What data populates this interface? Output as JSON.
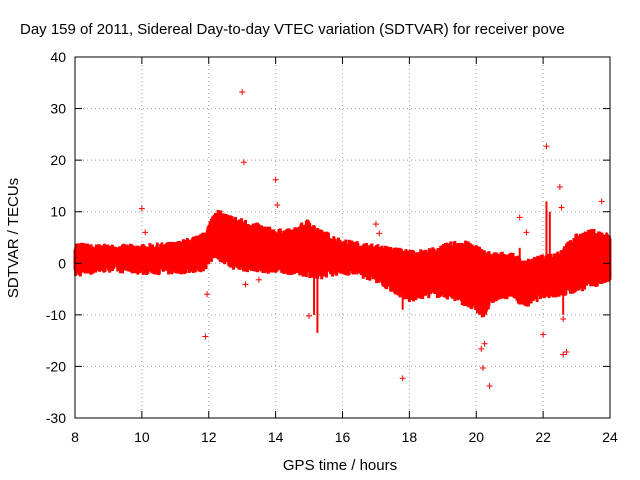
{
  "chart_data": {
    "type": "scatter",
    "title": "Day 159 of 2011, Sidereal Day-to-day VTEC variation (SDTVAR) for receiver pove",
    "xlabel": "GPS time / hours",
    "ylabel": "SDTVAR / TECUs",
    "xlim": [
      8,
      24
    ],
    "ylim": [
      -30,
      40
    ],
    "xticks": [
      "8",
      "10",
      "12",
      "14",
      "16",
      "18",
      "20",
      "22",
      "24"
    ],
    "yticks": [
      "40",
      "30",
      "20",
      "10",
      "0",
      "-10",
      "-20",
      "-30"
    ],
    "grid": true,
    "marker": "+",
    "color": "#ff0000",
    "band": {
      "x": [
        8.0,
        8.5,
        9.0,
        10.0,
        11.0,
        11.8,
        12.0,
        12.2,
        12.5,
        13.0,
        13.5,
        14.0,
        14.5,
        15.0,
        15.3,
        15.5,
        16.0,
        16.5,
        17.0,
        17.5,
        18.0,
        18.5,
        19.0,
        19.5,
        20.0,
        20.2,
        20.5,
        21.0,
        21.5,
        22.0,
        22.5,
        23.0,
        23.5,
        24.0
      ],
      "upper": [
        3.5,
        3.0,
        3.0,
        3.0,
        3.5,
        5.0,
        7.0,
        10.0,
        9.0,
        8.0,
        7.0,
        6.0,
        6.0,
        8.0,
        6.0,
        5.5,
        4.0,
        3.5,
        3.0,
        2.5,
        2.0,
        2.0,
        3.0,
        4.0,
        3.0,
        2.0,
        1.5,
        1.5,
        0.0,
        1.0,
        2.0,
        5.0,
        6.0,
        5.0
      ],
      "lower": [
        -2.0,
        -1.5,
        -1.0,
        -1.5,
        -1.5,
        -1.0,
        0.0,
        2.0,
        0.0,
        -1.0,
        -1.0,
        -1.5,
        -1.5,
        -2.0,
        -3.0,
        -2.0,
        -1.5,
        -2.0,
        -3.0,
        -5.0,
        -7.0,
        -6.0,
        -6.0,
        -7.0,
        -9.0,
        -10.0,
        -7.0,
        -6.0,
        -8.0,
        -6.0,
        -6.0,
        -5.0,
        -4.0,
        -3.0
      ]
    },
    "spikes": [
      [
        15.15,
        6.0,
        -10.0
      ],
      [
        15.25,
        5.0,
        -13.5
      ],
      [
        17.8,
        1.0,
        -9.0
      ],
      [
        20.2,
        0.0,
        -10.0
      ],
      [
        21.4,
        -1.0,
        -8.0
      ],
      [
        22.1,
        12.0,
        -6.0
      ],
      [
        22.2,
        10.0,
        -6.0
      ],
      [
        22.6,
        2.0,
        -10.0
      ],
      [
        23.9,
        6.0,
        -3.0
      ],
      [
        21.3,
        3.0,
        -7.0
      ]
    ],
    "outliers": [
      [
        13.0,
        33.2
      ],
      [
        13.05,
        19.6
      ],
      [
        14.0,
        16.2
      ],
      [
        14.05,
        11.3
      ],
      [
        10.0,
        10.6
      ],
      [
        10.1,
        6.0
      ],
      [
        11.9,
        -14.2
      ],
      [
        11.95,
        -6.0
      ],
      [
        13.1,
        -4.1
      ],
      [
        13.5,
        -3.2
      ],
      [
        15.0,
        -10.2
      ],
      [
        17.0,
        7.6
      ],
      [
        17.1,
        5.8
      ],
      [
        17.8,
        -22.3
      ],
      [
        20.15,
        -16.6
      ],
      [
        20.2,
        -20.3
      ],
      [
        20.25,
        -15.6
      ],
      [
        20.4,
        -23.8
      ],
      [
        21.3,
        8.9
      ],
      [
        21.5,
        6.0
      ],
      [
        22.0,
        -13.8
      ],
      [
        22.1,
        22.7
      ],
      [
        22.5,
        14.8
      ],
      [
        22.55,
        10.8
      ],
      [
        22.6,
        -10.8
      ],
      [
        22.6,
        -17.7
      ],
      [
        22.7,
        -17.2
      ],
      [
        23.75,
        12.0
      ]
    ]
  }
}
